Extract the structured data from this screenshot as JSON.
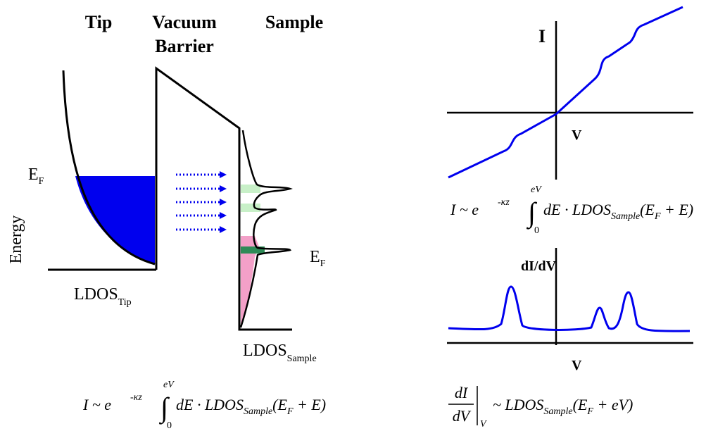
{
  "left": {
    "tip": "Tip",
    "vacuum": "Vacuum",
    "barrier": "Barrier",
    "sample": "Sample",
    "ef_tip": {
      "main": "E",
      "sub": "F"
    },
    "energy": "Energy",
    "ldos_tip": {
      "main": "LDOS",
      "sub": "Tip"
    },
    "ef_sample": {
      "main": "E",
      "sub": "F"
    },
    "ldos_sample": {
      "main": "LDOS",
      "sub": "Sample"
    },
    "formula": {
      "lhs": "I ~ e",
      "exp": "-κz",
      "upper": "eV",
      "lower": "0",
      "integral": "∫",
      "body": "dE · LDOS",
      "sub": "Sample",
      "open": "(E",
      "sub2": "F",
      "close": " + E)"
    }
  },
  "right": {
    "i_axis": "I",
    "v_axis": "V",
    "formula": {
      "lhs": "I ~ e",
      "exp": "-κz",
      "upper": "eV",
      "lower": "0",
      "integral": "∫",
      "body": "dE · LDOS",
      "sub": "Sample",
      "open": "(E",
      "sub2": "F",
      "close": " + E)"
    },
    "didv_axis": "dI/dV",
    "v_axis2": "V",
    "formula2": {
      "num": "dI",
      "den": "dV",
      "eval": "V",
      "body": "~ LDOS",
      "sub": "Sample",
      "open": "(E",
      "sub2": "F",
      "close": " + eV)"
    }
  }
}
